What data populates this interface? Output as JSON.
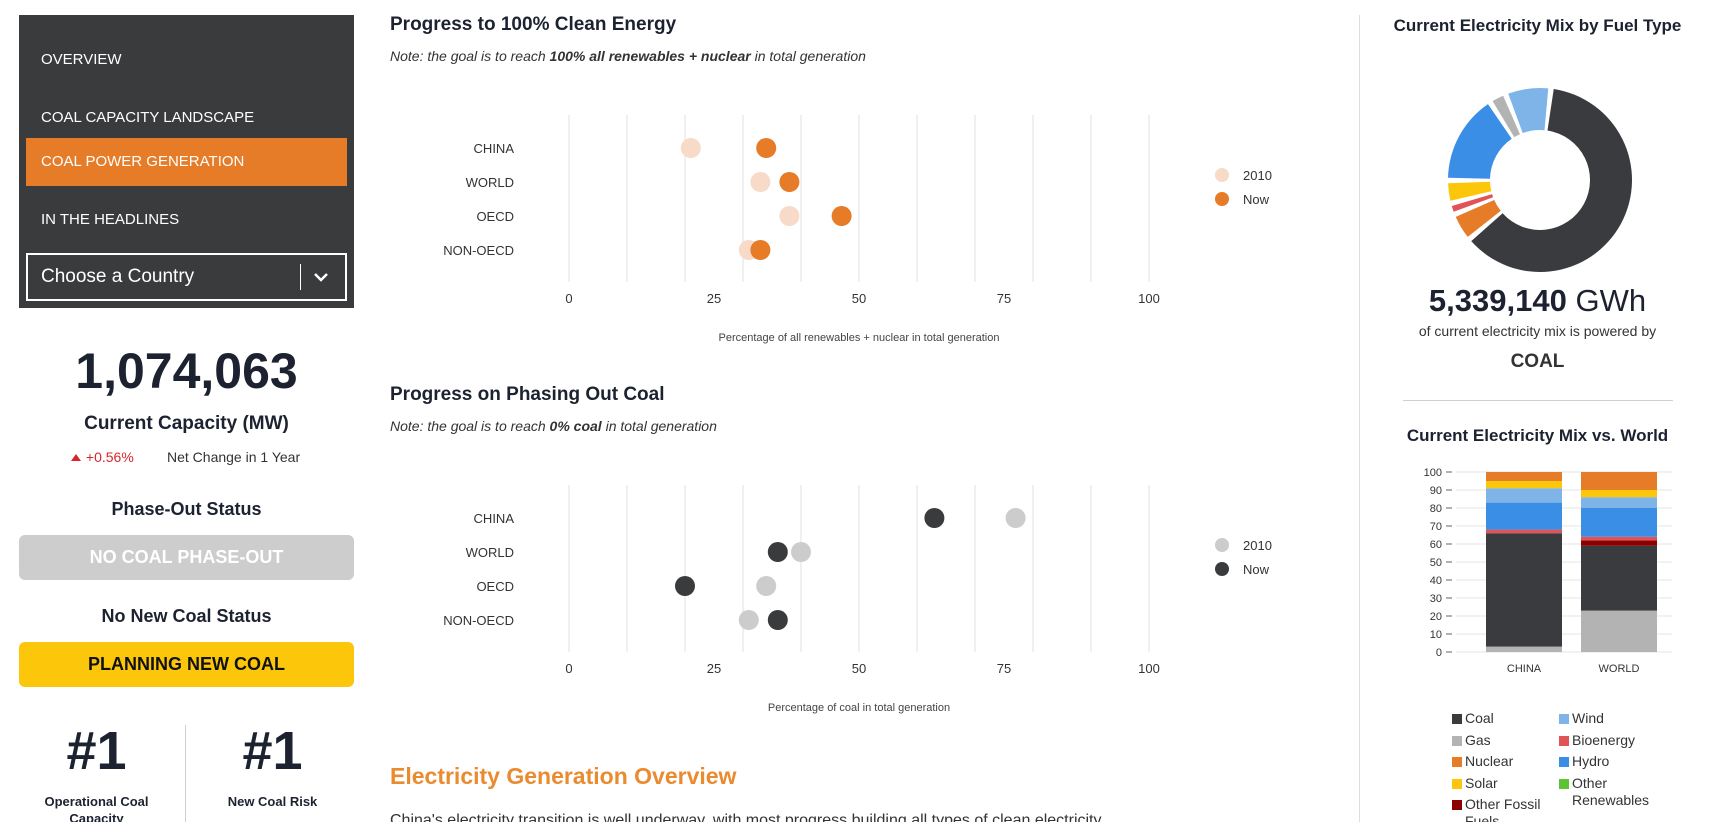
{
  "sidebar": {
    "nav": [
      {
        "label": "OVERVIEW",
        "active": false
      },
      {
        "label": "COAL CAPACITY LANDSCAPE",
        "active": false
      },
      {
        "label": "COAL POWER GENERATION",
        "active": true
      },
      {
        "label": "IN THE HEADLINES",
        "active": false
      }
    ],
    "country_select": {
      "placeholder": "Choose a Country"
    },
    "capacity": {
      "value": "1,074,063",
      "label": "Current Capacity (MW)",
      "change": "+0.56%",
      "change_label": "Net Change in 1 Year"
    },
    "phase_out": {
      "title": "Phase-Out Status",
      "value": "NO COAL PHASE-OUT"
    },
    "new_coal": {
      "title": "No New Coal Status",
      "value": "PLANNING NEW COAL"
    },
    "ranks": [
      {
        "value": "#1",
        "label": "Operational Coal Capacity"
      },
      {
        "value": "#1",
        "label": "New Coal Risk"
      }
    ]
  },
  "sections": {
    "clean": {
      "title": "Progress to 100% Clean Energy",
      "note_prefix": "Note: the goal is to reach ",
      "note_bold": "100% all renewables + nuclear",
      "note_suffix": " in total generation"
    },
    "coal": {
      "title": "Progress on Phasing Out Coal",
      "note_prefix": "Note: the goal is to reach ",
      "note_bold": "0% coal",
      "note_suffix": " in total generation"
    },
    "overview": {
      "title": "Electricity Generation Overview",
      "text": "China's electricity transition is well underway, with most progress building all types of clean electricity..."
    }
  },
  "mix": {
    "title": "Current Electricity Mix by Fuel Type",
    "value": "5,339,140",
    "unit": "GWh",
    "sub": "of current electricity mix is powered by",
    "fuel": "COAL"
  },
  "colors": {
    "orange": "#e67b28",
    "orange_light": "#f7dac8",
    "dark": "#3a3b3d",
    "gray_light": "#cccccc",
    "coal": "#3a3b3f",
    "gas": "#b3b3b3",
    "nuclear": "#e67b28",
    "solar": "#fcc60a",
    "other_fossil": "#8b0000",
    "wind": "#7fb4e8",
    "bioenergy": "#e05458",
    "hydro": "#3a8ee6",
    "other_renewables": "#5cc433"
  },
  "chart_data": [
    {
      "type": "scatter",
      "title": "Progress to 100% Clean Energy",
      "xlabel": "Percentage of all renewables + nuclear in total generation",
      "xlim": [
        0,
        100
      ],
      "xticks": [
        0,
        25,
        50,
        75,
        100
      ],
      "categories": [
        "CHINA",
        "WORLD",
        "OECD",
        "NON-OECD"
      ],
      "legend_position": "right",
      "series": [
        {
          "name": "2010",
          "values": [
            21,
            33,
            38,
            31
          ]
        },
        {
          "name": "Now",
          "values": [
            34,
            38,
            47,
            33
          ]
        }
      ]
    },
    {
      "type": "scatter",
      "title": "Progress on Phasing Out Coal",
      "xlabel": "Percentage of coal in total generation",
      "xlim": [
        0,
        100
      ],
      "xticks": [
        0,
        25,
        50,
        75,
        100
      ],
      "categories": [
        "CHINA",
        "WORLD",
        "OECD",
        "NON-OECD"
      ],
      "legend_position": "right",
      "series": [
        {
          "name": "2010",
          "values": [
            77,
            40,
            34,
            31
          ]
        },
        {
          "name": "Now",
          "values": [
            63,
            36,
            20,
            36
          ]
        }
      ]
    },
    {
      "type": "pie",
      "title": "Current Electricity Mix by Fuel Type",
      "donut": true,
      "slices": [
        {
          "label": "Coal",
          "value": 62
        },
        {
          "label": "Nuclear",
          "value": 5
        },
        {
          "label": "Bioenergy",
          "value": 2
        },
        {
          "label": "Solar",
          "value": 4
        },
        {
          "label": "Hydro",
          "value": 16
        },
        {
          "label": "Gas",
          "value": 3
        },
        {
          "label": "Wind",
          "value": 8
        }
      ]
    },
    {
      "type": "bar",
      "stacked": true,
      "title": "Current Electricity Mix vs. World",
      "categories": [
        "CHINA",
        "WORLD"
      ],
      "ylim": [
        0,
        100
      ],
      "yticks": [
        0,
        10,
        20,
        30,
        40,
        50,
        60,
        70,
        80,
        90,
        100
      ],
      "series": [
        {
          "name": "Gas",
          "values": [
            3,
            23
          ]
        },
        {
          "name": "Coal",
          "values": [
            63,
            36
          ]
        },
        {
          "name": "Other Fossil Fuels",
          "values": [
            0,
            3
          ]
        },
        {
          "name": "Bioenergy",
          "values": [
            2,
            2
          ]
        },
        {
          "name": "Hydro",
          "values": [
            15,
            16
          ]
        },
        {
          "name": "Wind",
          "values": [
            8,
            6
          ]
        },
        {
          "name": "Solar",
          "values": [
            4,
            4
          ]
        },
        {
          "name": "Nuclear",
          "values": [
            5,
            10
          ]
        }
      ],
      "legend": [
        "Coal",
        "Wind",
        "Gas",
        "Bioenergy",
        "Nuclear",
        "Hydro",
        "Solar",
        "Other Renewables",
        "Other Fossil Fuels"
      ]
    }
  ]
}
